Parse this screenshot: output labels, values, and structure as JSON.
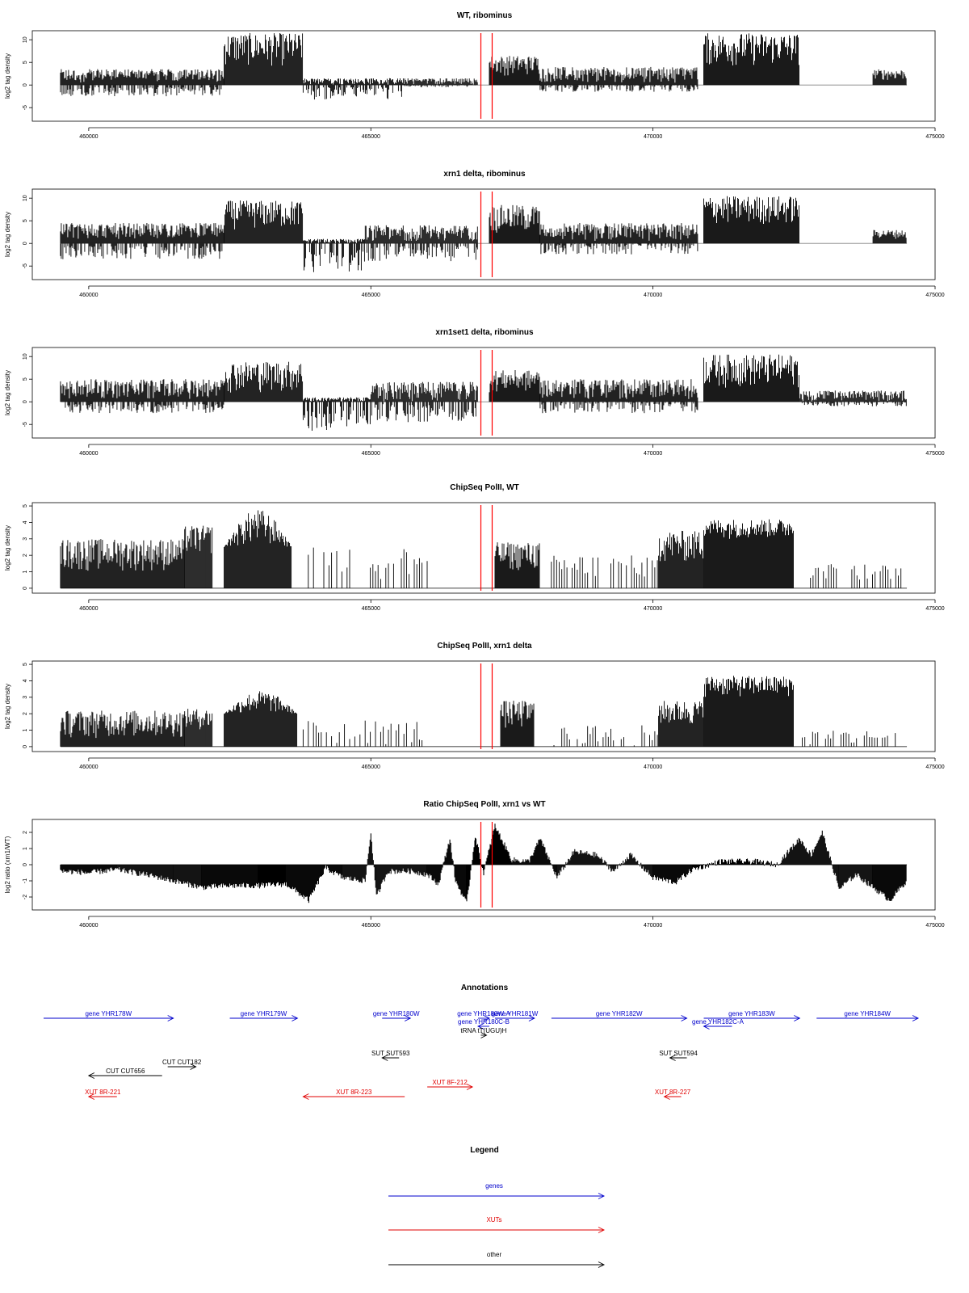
{
  "chart_data": [
    {
      "type": "bar",
      "title": "WT, ribominus",
      "ylabel": "log2 tag density",
      "xlim": [
        459000,
        475000
      ],
      "ylim": [
        -8,
        12
      ],
      "yticks": [
        -5,
        0,
        5,
        10
      ],
      "xticks": [
        460000,
        465000,
        470000,
        475000
      ],
      "blocks": [
        {
          "start": 459500,
          "end": 462400,
          "pos_lo": 0.5,
          "pos_hi": 3.5,
          "neg_lo": -0.5,
          "neg_hi": -2.5
        },
        {
          "start": 462400,
          "end": 463800,
          "pos_lo": 4,
          "pos_hi": 11.5
        },
        {
          "start": 463800,
          "end": 465600,
          "pos_lo": 0,
          "pos_hi": 1.5,
          "neg_lo": -0.5,
          "neg_hi": -3.5
        },
        {
          "start": 465600,
          "end": 466900,
          "pos_lo": 0,
          "pos_hi": 1.5,
          "neg_lo": 0,
          "neg_hi": -0.5
        },
        {
          "start": 467100,
          "end": 468000,
          "pos_lo": 2,
          "pos_hi": 6.5
        },
        {
          "start": 468000,
          "end": 470800,
          "pos_lo": 0.5,
          "pos_hi": 4,
          "neg_lo": 0,
          "neg_hi": -1.5
        },
        {
          "start": 470900,
          "end": 472600,
          "pos_lo": 4,
          "pos_hi": 11.5
        },
        {
          "start": 473900,
          "end": 474500,
          "pos_lo": 1,
          "pos_hi": 3.5
        }
      ],
      "markers": [
        466950,
        467150
      ]
    },
    {
      "type": "bar",
      "title": "xrn1 delta, ribominus",
      "ylabel": "log2 tag density",
      "xlim": [
        459000,
        475000
      ],
      "ylim": [
        -8,
        12
      ],
      "yticks": [
        -5,
        0,
        5,
        10
      ],
      "xticks": [
        460000,
        465000,
        470000,
        475000
      ],
      "blocks": [
        {
          "start": 459500,
          "end": 462400,
          "pos_lo": 1,
          "pos_hi": 4.5,
          "neg_lo": -0.5,
          "neg_hi": -3.5
        },
        {
          "start": 462400,
          "end": 463800,
          "pos_lo": 3,
          "pos_hi": 9.5
        },
        {
          "start": 463800,
          "end": 464900,
          "pos_lo": 0,
          "pos_hi": 1,
          "neg_lo": -1,
          "neg_hi": -6.5
        },
        {
          "start": 464900,
          "end": 466900,
          "pos_lo": 0.5,
          "pos_hi": 4,
          "neg_lo": -0.5,
          "neg_hi": -4
        },
        {
          "start": 467100,
          "end": 468000,
          "pos_lo": 2,
          "pos_hi": 8.5
        },
        {
          "start": 468000,
          "end": 470800,
          "pos_lo": 0.5,
          "pos_hi": 4.5,
          "neg_lo": 0,
          "neg_hi": -2.5
        },
        {
          "start": 470900,
          "end": 472600,
          "pos_lo": 4,
          "pos_hi": 10.5
        },
        {
          "start": 473900,
          "end": 474500,
          "pos_lo": 1,
          "pos_hi": 3
        }
      ],
      "markers": [
        466950,
        467150
      ]
    },
    {
      "type": "bar",
      "title": "xrn1set1 delta, ribominus",
      "ylabel": "log2 tag density",
      "xlim": [
        459000,
        475000
      ],
      "ylim": [
        -8,
        12
      ],
      "yticks": [
        -5,
        0,
        5,
        10
      ],
      "xticks": [
        460000,
        465000,
        470000,
        475000
      ],
      "blocks": [
        {
          "start": 459500,
          "end": 462400,
          "pos_lo": 0.5,
          "pos_hi": 5,
          "neg_lo": -0.5,
          "neg_hi": -2.5
        },
        {
          "start": 462400,
          "end": 463800,
          "pos_lo": 2,
          "pos_hi": 9
        },
        {
          "start": 463800,
          "end": 465000,
          "pos_lo": 0,
          "pos_hi": 1,
          "neg_lo": -1,
          "neg_hi": -6.5
        },
        {
          "start": 465000,
          "end": 466900,
          "pos_lo": 0,
          "pos_hi": 4.5,
          "neg_lo": -0.5,
          "neg_hi": -4.5
        },
        {
          "start": 467100,
          "end": 468000,
          "pos_lo": 2,
          "pos_hi": 7
        },
        {
          "start": 468000,
          "end": 470800,
          "pos_lo": 0.5,
          "pos_hi": 5,
          "neg_lo": 0,
          "neg_hi": -2.5
        },
        {
          "start": 470900,
          "end": 472600,
          "pos_lo": 3,
          "pos_hi": 10.5
        },
        {
          "start": 472600,
          "end": 474500,
          "pos_lo": 0,
          "pos_hi": 2.5,
          "neg_lo": 0,
          "neg_hi": -1
        }
      ],
      "markers": [
        466950,
        467150
      ]
    },
    {
      "type": "bar",
      "title": "ChipSeq PolII, WT",
      "ylabel": "log2 tag density",
      "xlim": [
        459000,
        475000
      ],
      "ylim": [
        -0.3,
        5.2
      ],
      "yticks": [
        0,
        1,
        2,
        3,
        4,
        5
      ],
      "xticks": [
        460000,
        465000,
        470000,
        475000
      ],
      "blocks": [
        {
          "start": 459500,
          "end": 461700,
          "pos_lo": 1,
          "pos_hi": 3
        },
        {
          "start": 461700,
          "end": 462200,
          "pos_lo": 2,
          "pos_hi": 3.8
        },
        {
          "start": 462400,
          "end": 463600,
          "pos_lo": 2.5,
          "pos_hi": 4.8,
          "dome": true
        },
        {
          "start": 463800,
          "end": 466000,
          "pos_lo": 0.5,
          "pos_hi": 2.5,
          "sparse": true
        },
        {
          "start": 467200,
          "end": 468000,
          "pos_lo": 1,
          "pos_hi": 2.8
        },
        {
          "start": 468200,
          "end": 470100,
          "pos_lo": 0.5,
          "pos_hi": 2,
          "sparse": true
        },
        {
          "start": 470100,
          "end": 470900,
          "pos_lo": 1.5,
          "pos_hi": 3.5
        },
        {
          "start": 470900,
          "end": 472500,
          "pos_lo": 3,
          "pos_hi": 4.2
        },
        {
          "start": 472700,
          "end": 474400,
          "pos_lo": 0.5,
          "pos_hi": 1.5,
          "sparse": true
        }
      ],
      "markers": [
        466950,
        467150
      ]
    },
    {
      "type": "bar",
      "title": "ChipSeq PolII, xrn1 delta",
      "ylabel": "log2 tag density",
      "xlim": [
        459000,
        475000
      ],
      "ylim": [
        -0.3,
        5.2
      ],
      "yticks": [
        0,
        1,
        2,
        3,
        4,
        5
      ],
      "xticks": [
        460000,
        465000,
        470000,
        475000
      ],
      "blocks": [
        {
          "start": 459500,
          "end": 461700,
          "pos_lo": 0.5,
          "pos_hi": 2.2
        },
        {
          "start": 461700,
          "end": 462200,
          "pos_lo": 1,
          "pos_hi": 2.3
        },
        {
          "start": 462400,
          "end": 463700,
          "pos_lo": 2,
          "pos_hi": 3.4,
          "dome": true
        },
        {
          "start": 463800,
          "end": 466000,
          "pos_lo": 0,
          "pos_hi": 1.6,
          "sparse": true
        },
        {
          "start": 467300,
          "end": 467900,
          "pos_lo": 1,
          "pos_hi": 2.8
        },
        {
          "start": 468200,
          "end": 470100,
          "pos_lo": 0,
          "pos_hi": 1.3,
          "sparse": true
        },
        {
          "start": 470100,
          "end": 470900,
          "pos_lo": 1.2,
          "pos_hi": 2.8
        },
        {
          "start": 470900,
          "end": 472500,
          "pos_lo": 3,
          "pos_hi": 4.3
        },
        {
          "start": 472600,
          "end": 474400,
          "pos_lo": 0,
          "pos_hi": 1,
          "sparse": true
        }
      ],
      "markers": [
        466950,
        467150
      ]
    },
    {
      "type": "area",
      "title": "Ratio ChipSeq PolII, xrn1 vs WT",
      "ylabel": "log2 ratio (xrn1/WT)",
      "xlim": [
        459000,
        475000
      ],
      "ylim": [
        -2.8,
        2.8
      ],
      "yticks": [
        -2,
        -1,
        0,
        1,
        2
      ],
      "xticks": [
        460000,
        465000,
        470000,
        475000
      ],
      "profile": [
        [
          459500,
          -0.4
        ],
        [
          460000,
          -0.5
        ],
        [
          460500,
          -0.3
        ],
        [
          461000,
          -0.6
        ],
        [
          461500,
          -1.0
        ],
        [
          462000,
          -1.4
        ],
        [
          462500,
          -1.3
        ],
        [
          463000,
          -1.3
        ],
        [
          463500,
          -1.2
        ],
        [
          463900,
          -2.2
        ],
        [
          464200,
          -0.2
        ],
        [
          464500,
          -0.8
        ],
        [
          464900,
          -1.0
        ],
        [
          465000,
          2.0
        ],
        [
          465100,
          -2.0
        ],
        [
          465300,
          -0.4
        ],
        [
          465700,
          -0.4
        ],
        [
          466000,
          -0.6
        ],
        [
          466200,
          -1.2
        ],
        [
          466400,
          1.6
        ],
        [
          466500,
          -1.0
        ],
        [
          466700,
          -2.4
        ],
        [
          466850,
          1.8
        ],
        [
          467000,
          -0.5
        ],
        [
          467200,
          2.4
        ],
        [
          467500,
          0.3
        ],
        [
          467800,
          0.2
        ],
        [
          468000,
          1.6
        ],
        [
          468300,
          -0.8
        ],
        [
          468600,
          0.8
        ],
        [
          469000,
          0.6
        ],
        [
          469300,
          -0.4
        ],
        [
          469600,
          0.6
        ],
        [
          470000,
          -0.8
        ],
        [
          470400,
          -1.1
        ],
        [
          470700,
          -0.3
        ],
        [
          471200,
          0.2
        ],
        [
          471800,
          0.2
        ],
        [
          472200,
          0.0
        ],
        [
          472600,
          1.6
        ],
        [
          472800,
          0.6
        ],
        [
          473000,
          2.0
        ],
        [
          473300,
          -1.5
        ],
        [
          473600,
          -0.6
        ],
        [
          473900,
          -1.4
        ],
        [
          474200,
          -2.2
        ],
        [
          474500,
          -1.0
        ]
      ],
      "markers": [
        466950,
        467150
      ]
    }
  ],
  "annotations": {
    "title": "Annotations",
    "features": [
      {
        "label": "gene YHR178W",
        "type": "genes",
        "start": 459200,
        "end": 461500,
        "strand": "+",
        "row": 0
      },
      {
        "label": "gene YHR179W",
        "type": "genes",
        "start": 462500,
        "end": 463700,
        "strand": "+",
        "row": 0
      },
      {
        "label": "gene YHR180W",
        "type": "genes",
        "start": 465200,
        "end": 465700,
        "strand": "+",
        "row": 0
      },
      {
        "label": "gene YHR180W-A",
        "type": "genes",
        "start": 466900,
        "end": 467100,
        "strand": "+",
        "row": 0
      },
      {
        "label": "gene YHR181W",
        "type": "genes",
        "start": 467200,
        "end": 467900,
        "strand": "+",
        "row": 0
      },
      {
        "label": "gene YHR182W",
        "type": "genes",
        "start": 468200,
        "end": 470600,
        "strand": "+",
        "row": 0
      },
      {
        "label": "gene YHR183W",
        "type": "genes",
        "start": 470900,
        "end": 472600,
        "strand": "+",
        "row": 0
      },
      {
        "label": "gene YHR184W",
        "type": "genes",
        "start": 472900,
        "end": 474700,
        "strand": "+",
        "row": 0
      },
      {
        "label": "gene YHR180C-B",
        "type": "genes",
        "start": 466900,
        "end": 467100,
        "strand": "-",
        "row": 1
      },
      {
        "label": "gene YHR182C-A",
        "type": "genes",
        "start": 470900,
        "end": 471400,
        "strand": "-",
        "row": 1
      },
      {
        "label": "tRNA tT(UGU)H",
        "type": "other",
        "start": 466950,
        "end": 467050,
        "strand": "+",
        "row": 2
      },
      {
        "label": "SUT SUT593",
        "type": "other",
        "start": 465200,
        "end": 465500,
        "strand": "-",
        "row": 3
      },
      {
        "label": "SUT SUT594",
        "type": "other",
        "start": 470300,
        "end": 470600,
        "strand": "-",
        "row": 3
      },
      {
        "label": "CUT CUT182",
        "type": "other",
        "start": 461400,
        "end": 461900,
        "strand": "+",
        "row": 4
      },
      {
        "label": "CUT CUT656",
        "type": "other",
        "start": 460000,
        "end": 461300,
        "strand": "-",
        "row": 5
      },
      {
        "label": "XUT 8F-212",
        "type": "XUTs",
        "start": 466000,
        "end": 466800,
        "strand": "+",
        "row": 6
      },
      {
        "label": "XUT 8R-221",
        "type": "XUTs",
        "start": 460000,
        "end": 460500,
        "strand": "-",
        "row": 7
      },
      {
        "label": "XUT 8R-223",
        "type": "XUTs",
        "start": 463800,
        "end": 465600,
        "strand": "-",
        "row": 7
      },
      {
        "label": "XUT 8R-227",
        "type": "XUTs",
        "start": 470200,
        "end": 470500,
        "strand": "-",
        "row": 7
      }
    ]
  },
  "legend": {
    "title": "Legend",
    "items": [
      {
        "label": "genes",
        "color": "#0000cc"
      },
      {
        "label": "XUTs",
        "color": "#e00000"
      },
      {
        "label": "other",
        "color": "#000000"
      }
    ]
  },
  "colors": {
    "signal": "#000000",
    "marker": "#ff0000",
    "genes": "#0000cc",
    "XUTs": "#e00000",
    "other": "#000000",
    "axis": "#000000",
    "baseline": "#808080"
  }
}
